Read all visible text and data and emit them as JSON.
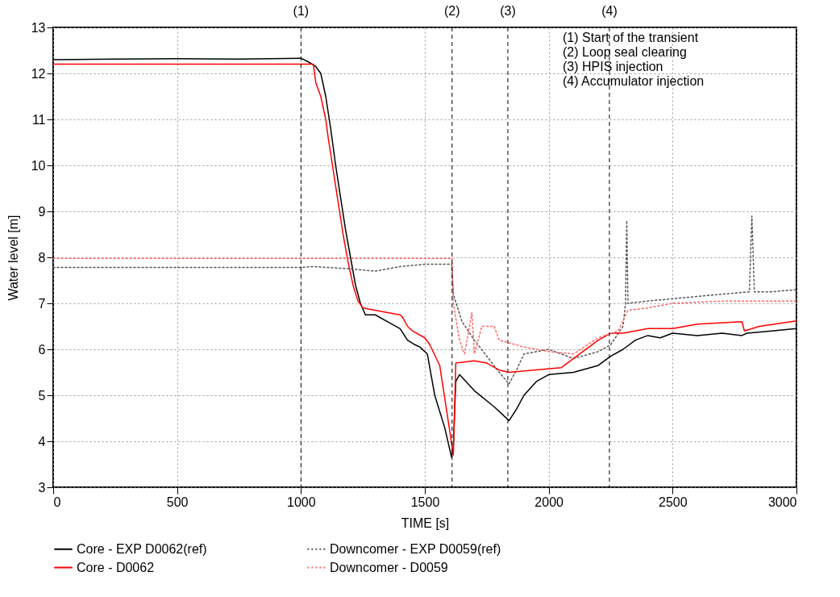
{
  "chart_data": {
    "type": "line",
    "xlabel": "TIME [s]",
    "ylabel": "Water level [m]",
    "xlim": [
      0,
      3000
    ],
    "ylim": [
      3,
      13
    ],
    "xticks": [
      0,
      500,
      1000,
      1500,
      2000,
      2500,
      3000
    ],
    "yticks": [
      3,
      4,
      5,
      6,
      7,
      8,
      9,
      10,
      11,
      12,
      13
    ],
    "grid": true,
    "legend": "bottom",
    "marker": "none",
    "series": [
      {
        "name": "Core - EXP D0062(ref)",
        "color": "#000000",
        "line_style": "solid",
        "x": [
          0,
          250,
          500,
          750,
          1000,
          1030,
          1060,
          1080,
          1100,
          1120,
          1140,
          1160,
          1180,
          1200,
          1220,
          1240,
          1260,
          1300,
          1350,
          1400,
          1430,
          1460,
          1480,
          1510,
          1540,
          1580,
          1608,
          1615,
          1625,
          1640,
          1700,
          1780,
          1840,
          1870,
          1900,
          1950,
          2000,
          2100,
          2200,
          2250,
          2300,
          2350,
          2400,
          2450,
          2500,
          2600,
          2700,
          2780,
          2800,
          2900,
          3000
        ],
        "values": [
          12.3,
          12.31,
          12.32,
          12.31,
          12.33,
          12.25,
          12.15,
          12.0,
          11.5,
          10.8,
          10.0,
          9.3,
          8.6,
          8.0,
          7.4,
          7.0,
          6.75,
          6.75,
          6.6,
          6.45,
          6.2,
          6.1,
          6.05,
          5.9,
          5.0,
          4.3,
          3.65,
          3.9,
          5.3,
          5.45,
          5.1,
          4.75,
          4.45,
          4.7,
          5.0,
          5.3,
          5.45,
          5.5,
          5.65,
          5.85,
          6.0,
          6.2,
          6.3,
          6.25,
          6.35,
          6.3,
          6.35,
          6.3,
          6.35,
          6.4,
          6.45
        ]
      },
      {
        "name": "Downcomer - EXP D0059(ref)",
        "color": "#555555",
        "line_style": "dotted",
        "x": [
          0,
          500,
          1000,
          1050,
          1200,
          1300,
          1400,
          1500,
          1608,
          1615,
          1650,
          1700,
          1750,
          1800,
          1840,
          1870,
          1900,
          2000,
          2100,
          2200,
          2250,
          2300,
          2310,
          2315,
          2320,
          2400,
          2500,
          2600,
          2700,
          2810,
          2820,
          2830,
          2900,
          3000
        ],
        "values": [
          7.78,
          7.78,
          7.78,
          7.8,
          7.75,
          7.7,
          7.8,
          7.85,
          7.85,
          7.2,
          6.6,
          6.2,
          5.85,
          5.5,
          5.25,
          5.55,
          5.9,
          6.0,
          5.8,
          5.95,
          6.1,
          6.5,
          7.0,
          8.8,
          7.0,
          7.05,
          7.1,
          7.15,
          7.2,
          7.25,
          8.9,
          7.25,
          7.25,
          7.3
        ]
      },
      {
        "name": "Core - D0062",
        "color": "#ff0000",
        "line_style": "solid",
        "x": [
          0,
          500,
          1050,
          1060,
          1080,
          1100,
          1110,
          1130,
          1150,
          1170,
          1190,
          1210,
          1230,
          1250,
          1350,
          1400,
          1410,
          1430,
          1450,
          1500,
          1520,
          1560,
          1590,
          1615,
          1625,
          1700,
          1750,
          1800,
          1840,
          2050,
          2100,
          2200,
          2250,
          2300,
          2400,
          2500,
          2600,
          2780,
          2790,
          2850,
          3000
        ],
        "values": [
          12.2,
          12.2,
          12.2,
          11.8,
          11.5,
          11.0,
          10.6,
          9.9,
          9.2,
          8.5,
          7.9,
          7.4,
          7.05,
          6.9,
          6.8,
          6.75,
          6.7,
          6.5,
          6.4,
          6.25,
          6.1,
          5.65,
          4.6,
          3.7,
          5.7,
          5.75,
          5.7,
          5.55,
          5.5,
          5.6,
          5.8,
          6.2,
          6.35,
          6.35,
          6.45,
          6.45,
          6.55,
          6.6,
          6.4,
          6.5,
          6.62
        ]
      },
      {
        "name": "Downcomer - D0059",
        "color": "#ff6666",
        "line_style": "dotted",
        "x": [
          0,
          500,
          1000,
          1610,
          1615,
          1640,
          1660,
          1680,
          1690,
          1700,
          1730,
          1780,
          1800,
          1900,
          2000,
          2100,
          2200,
          2280,
          2320,
          2400,
          2500,
          2700,
          3000
        ],
        "values": [
          7.98,
          7.98,
          7.98,
          7.98,
          7.0,
          6.2,
          5.9,
          6.5,
          6.8,
          5.9,
          6.5,
          6.5,
          6.2,
          6.05,
          5.95,
          5.9,
          6.25,
          6.4,
          6.85,
          6.9,
          7.0,
          7.05,
          7.05
        ]
      }
    ],
    "ref_lines": [
      {
        "axis": "x",
        "value": 1000,
        "line_style": "dashed"
      },
      {
        "axis": "x",
        "value": 1610,
        "line_style": "dashed"
      },
      {
        "axis": "x",
        "value": 1835,
        "line_style": "dashed"
      },
      {
        "axis": "x",
        "value": 2245,
        "line_style": "dashed"
      }
    ],
    "annotations": [
      {
        "text": "(1)",
        "x": 1000,
        "y": 13
      },
      {
        "text": "(2)",
        "x": 1610,
        "y": 13
      },
      {
        "text": "(3)",
        "x": 1835,
        "y": 13
      },
      {
        "text": "(4)",
        "x": 2245,
        "y": 13
      },
      "(1) Start of the transient",
      "(2) Loop seal clearing",
      "(3) HPIS injection",
      "(4) Accumulator injection"
    ]
  }
}
